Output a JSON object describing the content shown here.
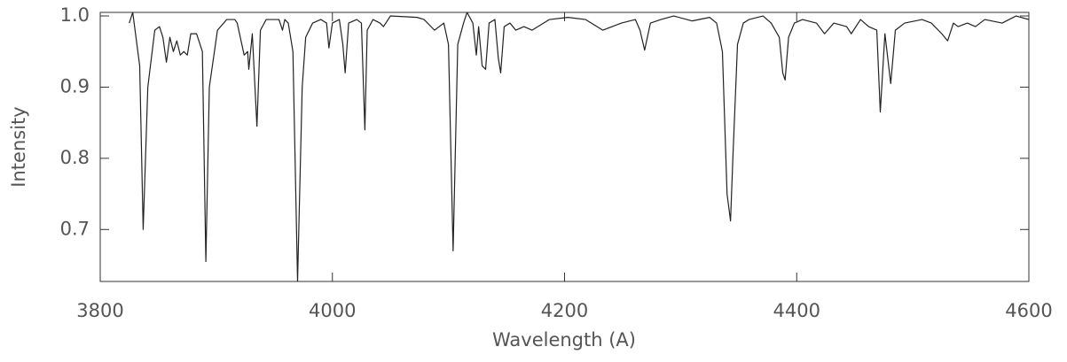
{
  "chart_data": {
    "type": "line",
    "x_label": "Wavelength (A)",
    "y_label": "Intensity",
    "color": "#222222",
    "xlim": [
      3800,
      4600
    ],
    "ylim": [
      0.627,
      1.005
    ],
    "xticks": [
      3800,
      4000,
      4200,
      4400,
      4600
    ],
    "yticks": [
      {
        "value": 0.7,
        "label": "0.7"
      },
      {
        "value": 0.8,
        "label": "0.8"
      },
      {
        "value": 0.9,
        "label": "0.9"
      },
      {
        "value": 1.0,
        "label": "1.0"
      }
    ],
    "x": [
      3825,
      3828,
      3834,
      3837,
      3841,
      3847,
      3851,
      3854,
      3857,
      3860,
      3863,
      3866,
      3869,
      3872,
      3875,
      3878,
      3883,
      3888,
      3891,
      3894,
      3901,
      3909,
      3916,
      3918,
      3922,
      3924,
      3927,
      3928,
      3931,
      3935,
      3938,
      3943,
      3954,
      3957,
      3959,
      3962,
      3966,
      3970,
      3974,
      3977,
      3983,
      3990,
      3995,
      3997,
      4000,
      4006,
      4009,
      4011,
      4014,
      4021,
      4025,
      4028,
      4030,
      4035,
      4041,
      4044,
      4050,
      4073,
      4079,
      4088,
      4096,
      4100,
      4104,
      4108,
      4113,
      4116,
      4121,
      4124,
      4126,
      4129,
      4132,
      4135,
      4140,
      4143,
      4145,
      4148,
      4153,
      4158,
      4165,
      4172,
      4187,
      4203,
      4218,
      4233,
      4249,
      4261,
      4265,
      4269,
      4274,
      4283,
      4294,
      4310,
      4325,
      4331,
      4336,
      4340,
      4343,
      4345,
      4349,
      4354,
      4359,
      4371,
      4378,
      4385,
      4388,
      4390,
      4393,
      4398,
      4405,
      4417,
      4424,
      4432,
      4443,
      4447,
      4455,
      4462,
      4469,
      4472,
      4476,
      4481,
      4485,
      4493,
      4508,
      4516,
      4525,
      4530,
      4535,
      4539,
      4547,
      4554,
      4562,
      4577,
      4589,
      4600
    ],
    "values": [
      0.99,
      1.005,
      0.93,
      0.7,
      0.9,
      0.98,
      0.985,
      0.97,
      0.935,
      0.97,
      0.95,
      0.965,
      0.945,
      0.95,
      0.945,
      0.975,
      0.975,
      0.95,
      0.655,
      0.9,
      0.98,
      0.995,
      0.995,
      0.99,
      0.96,
      0.945,
      0.95,
      0.925,
      0.975,
      0.845,
      0.98,
      0.995,
      0.995,
      0.98,
      0.995,
      0.99,
      0.95,
      0.627,
      0.9,
      0.97,
      0.99,
      0.995,
      0.99,
      0.955,
      0.99,
      0.995,
      0.96,
      0.92,
      0.99,
      0.995,
      0.99,
      0.84,
      0.98,
      0.995,
      0.99,
      0.985,
      1.0,
      0.998,
      0.995,
      0.98,
      0.99,
      0.96,
      0.67,
      0.96,
      0.99,
      1.005,
      0.99,
      0.945,
      0.985,
      0.93,
      0.925,
      0.99,
      0.995,
      0.94,
      0.92,
      0.985,
      0.99,
      0.98,
      0.985,
      0.98,
      0.995,
      0.998,
      0.995,
      0.98,
      0.99,
      0.995,
      0.98,
      0.952,
      0.99,
      0.995,
      1.0,
      0.993,
      0.998,
      0.99,
      0.95,
      0.75,
      0.712,
      0.8,
      0.96,
      0.99,
      0.995,
      1.0,
      0.99,
      0.97,
      0.92,
      0.91,
      0.97,
      0.99,
      0.995,
      0.99,
      0.975,
      0.99,
      0.985,
      0.975,
      0.995,
      0.985,
      0.98,
      0.865,
      0.975,
      0.905,
      0.98,
      0.99,
      0.995,
      0.99,
      0.975,
      0.965,
      0.99,
      0.985,
      0.99,
      0.985,
      0.995,
      0.99,
      1.0,
      0.995
    ]
  }
}
